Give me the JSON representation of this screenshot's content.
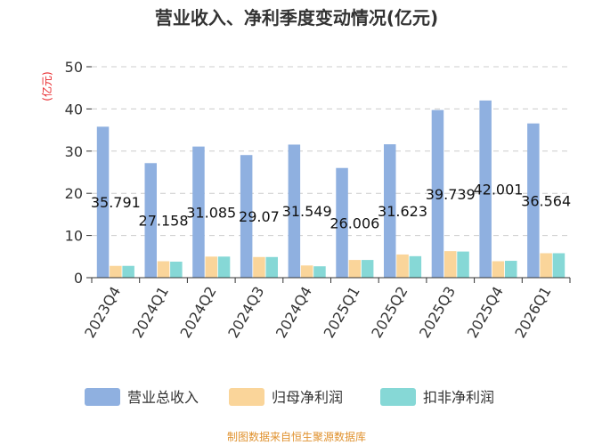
{
  "chart_data": {
    "type": "bar",
    "title": "营业收入、净利季度变动情况(亿元)",
    "ylabel": "(亿元)",
    "ylim": [
      0,
      50
    ],
    "yticks": [
      0,
      10,
      20,
      30,
      40,
      50
    ],
    "grid": true,
    "legend_position": "bottom",
    "categories": [
      "2023Q4",
      "2024Q1",
      "2024Q2",
      "2024Q3",
      "2024Q4",
      "2025Q1",
      "2025Q2",
      "2025Q3",
      "2025Q4",
      "2026Q1"
    ],
    "series": [
      {
        "name": "营业总收入",
        "color": "#8fb0e0",
        "values": [
          35.791,
          27.158,
          31.085,
          29.07,
          31.549,
          26.006,
          31.623,
          39.739,
          42.001,
          36.564
        ],
        "labels": [
          "35.791",
          "27.158",
          "31.085",
          "29.07",
          "31.549",
          "26.006",
          "31.623",
          "39.739",
          "42.001",
          "36.564"
        ]
      },
      {
        "name": "归母净利润",
        "color": "#fad59a",
        "values": [
          2.8,
          3.9,
          5.0,
          4.9,
          2.9,
          4.2,
          5.5,
          6.3,
          3.9,
          5.8
        ]
      },
      {
        "name": "扣非净利润",
        "color": "#86d8d6",
        "values": [
          2.8,
          3.8,
          5.0,
          4.9,
          2.7,
          4.2,
          5.1,
          6.2,
          4.0,
          5.8
        ]
      }
    ],
    "source": "制图数据来自恒生聚源数据库"
  }
}
